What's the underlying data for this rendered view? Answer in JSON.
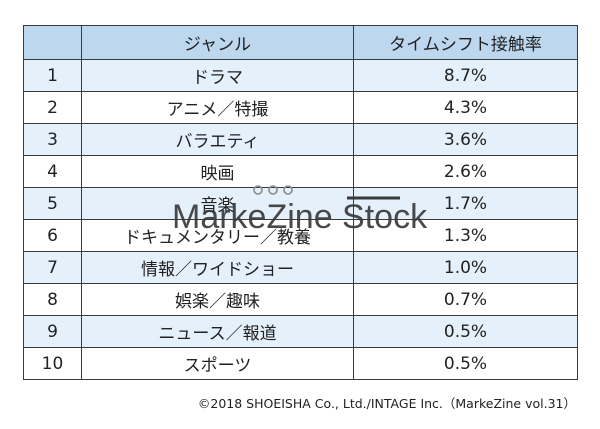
{
  "table": {
    "headers": [
      "",
      "ジャンル",
      "タイムシフト接触率"
    ],
    "rows": [
      {
        "rank": "1",
        "genre": "ドラマ",
        "rate": "8.7%"
      },
      {
        "rank": "2",
        "genre": "アニメ／特撮",
        "rate": "4.3%"
      },
      {
        "rank": "3",
        "genre": "バラエティ",
        "rate": "3.6%"
      },
      {
        "rank": "4",
        "genre": "映画",
        "rate": "2.6%"
      },
      {
        "rank": "5",
        "genre": "音楽",
        "rate": "1.7%"
      },
      {
        "rank": "6",
        "genre": "ドキュメンタリー／教養",
        "rate": "1.3%"
      },
      {
        "rank": "7",
        "genre": "情報／ワイドショー",
        "rate": "1.0%"
      },
      {
        "rank": "8",
        "genre": "娯楽／趣味",
        "rate": "0.7%"
      },
      {
        "rank": "9",
        "genre": "ニュース／報道",
        "rate": "0.5%"
      },
      {
        "rank": "10",
        "genre": "スポーツ",
        "rate": "0.5%"
      }
    ]
  },
  "footer": {
    "copyright": "©2018 SHOEISHA Co., Ltd./INTAGE Inc.（MarkeZine vol.31）"
  },
  "watermark": {
    "text": "MarkeZine Stock",
    "color": "#3a3a3a"
  }
}
